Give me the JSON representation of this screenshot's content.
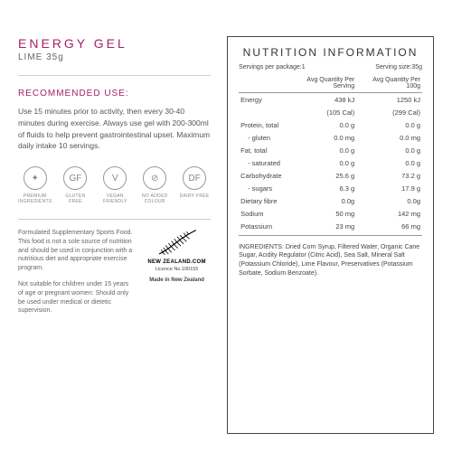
{
  "product": {
    "name": "ENERGY GEL",
    "variant": "LIME 35g"
  },
  "recommended": {
    "title": "RECOMMENDED USE:",
    "text": "Use 15 minutes prior to activity, then every 30-40 minutes during exercise. Always use gel with 200-300ml of fluids to help prevent gastrointestinal upset. Maximum daily intake 10 servings."
  },
  "icons": [
    {
      "label": "PREMIUM INGREDIENTS",
      "glyph": "✦"
    },
    {
      "label": "GLUTEN FREE",
      "glyph": "GF"
    },
    {
      "label": "VEGAN FRIENDLY",
      "glyph": "V"
    },
    {
      "label": "NO ADDED COLOUR",
      "glyph": "⊘"
    },
    {
      "label": "DAIRY FREE",
      "glyph": "DF"
    }
  ],
  "legal": {
    "p1": "Formulated Supplementary Sports Food. This food is not a sole source of nutrition and should be used in conjunction with a nutritious diet and appropriate exercise program.",
    "p2": "Not suitable for children under 15 years of age or pregnant women: Should only be used under medical or dietetic supervision."
  },
  "nz": {
    "brand": "NEW ZEALAND.COM",
    "licence": "Licence No.100155",
    "made": "Made in New Zealand"
  },
  "nutrition": {
    "title": "NUTRITION INFORMATION",
    "servings_pkg_label": "Servings per package:",
    "servings_pkg": "1",
    "serving_size_label": "Serving size:",
    "serving_size": "35g",
    "col1": "Avg Quantity Per Serving",
    "col2": "Avg Quantity Per 100g",
    "rows": [
      {
        "name": "Energy",
        "serv": "438 kJ",
        "per100": "1250 kJ",
        "indent": false
      },
      {
        "name": "",
        "serv": "(105 Cal)",
        "per100": "(299 Cal)",
        "indent": false
      },
      {
        "name": "Protein, total",
        "serv": "0.0 g",
        "per100": "0.0 g",
        "indent": false
      },
      {
        "name": "- gluten",
        "serv": "0.0 mg",
        "per100": "0.0 mg",
        "indent": true
      },
      {
        "name": "Fat, total",
        "serv": "0.0 g",
        "per100": "0.0 g",
        "indent": false
      },
      {
        "name": "- saturated",
        "serv": "0.0 g",
        "per100": "0.0 g",
        "indent": true
      },
      {
        "name": "Carbohydrate",
        "serv": "25.6 g",
        "per100": "73.2 g",
        "indent": false
      },
      {
        "name": "- sugars",
        "serv": "6.3 g",
        "per100": "17.9 g",
        "indent": true
      },
      {
        "name": "Dietary fibre",
        "serv": "0.0g",
        "per100": "0.0g",
        "indent": false
      },
      {
        "name": "Sodium",
        "serv": "50 mg",
        "per100": "142 mg",
        "indent": false
      },
      {
        "name": "Potassium",
        "serv": "23 mg",
        "per100": "66 mg",
        "indent": false
      }
    ],
    "ingredients_label": "INGREDIENTS:",
    "ingredients": "Dried Corn Syrup, Filtered Water, Organic Cane Sugar, Acidity Regulator (Citric Acid), Sea Salt, Mineral Salt (Potassium Chloride), Lime Flavour, Preservatives (Potassium Sorbate, Sodium Benzoate)."
  },
  "colors": {
    "accent": "#a6206a",
    "text": "#555555",
    "border": "#444444"
  }
}
